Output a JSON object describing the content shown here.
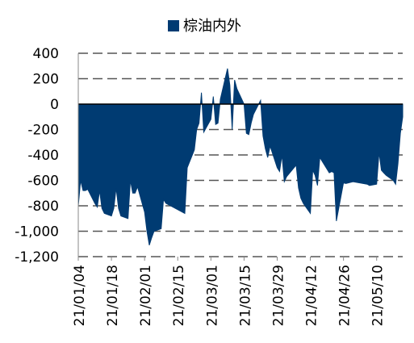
{
  "chart_data": {
    "type": "area",
    "title": "",
    "xlabel": "",
    "ylabel": "",
    "ylim": [
      -1200,
      400
    ],
    "yticks": [
      400,
      200,
      0,
      -200,
      -400,
      -600,
      -800,
      -1000,
      -1200
    ],
    "ytick_labels": [
      "400",
      "200",
      "0",
      "-200",
      "-400",
      "-600",
      "-800",
      "-1,000",
      "-1,200"
    ],
    "xlim": [
      "2021-01-04",
      "2021-05-21"
    ],
    "xticks": [
      "2021-01-04",
      "2021-01-18",
      "2021-02-01",
      "2021-02-15",
      "2021-03-01",
      "2021-03-15",
      "2021-03-29",
      "2021-04-12",
      "2021-04-26",
      "2021-05-10"
    ],
    "xtick_labels": [
      "21/01/04",
      "21/01/18",
      "21/02/01",
      "21/02/15",
      "21/03/01",
      "21/03/15",
      "21/03/29",
      "21/04/12",
      "21/04/26",
      "21/05/10"
    ],
    "grid": true,
    "legend_position": "top",
    "series": [
      {
        "name": "棕油内外",
        "color": "#003b72",
        "points": [
          [
            "2021-01-04",
            -800
          ],
          [
            "2021-01-05",
            -600
          ],
          [
            "2021-01-06",
            -680
          ],
          [
            "2021-01-07",
            -680
          ],
          [
            "2021-01-08",
            -670
          ],
          [
            "2021-01-11",
            -780
          ],
          [
            "2021-01-12",
            -810
          ],
          [
            "2021-01-13",
            -680
          ],
          [
            "2021-01-14",
            -820
          ],
          [
            "2021-01-15",
            -860
          ],
          [
            "2021-01-18",
            -880
          ],
          [
            "2021-01-19",
            -820
          ],
          [
            "2021-01-20",
            -660
          ],
          [
            "2021-01-21",
            -820
          ],
          [
            "2021-01-22",
            -880
          ],
          [
            "2021-01-25",
            -900
          ],
          [
            "2021-01-26",
            -600
          ],
          [
            "2021-01-27",
            -700
          ],
          [
            "2021-01-28",
            -700
          ],
          [
            "2021-01-29",
            -650
          ],
          [
            "2021-02-01",
            -850
          ],
          [
            "2021-02-02",
            -1000
          ],
          [
            "2021-02-03",
            -1110
          ],
          [
            "2021-02-04",
            -1050
          ],
          [
            "2021-02-05",
            -1000
          ],
          [
            "2021-02-08",
            -980
          ],
          [
            "2021-02-09",
            -750
          ],
          [
            "2021-02-10",
            -780
          ],
          [
            "2021-02-18",
            -860
          ],
          [
            "2021-02-19",
            -500
          ],
          [
            "2021-02-22",
            -360
          ],
          [
            "2021-02-23",
            -200
          ],
          [
            "2021-02-24",
            -150
          ],
          [
            "2021-02-25",
            90
          ],
          [
            "2021-02-26",
            -220
          ],
          [
            "2021-03-01",
            -120
          ],
          [
            "2021-03-02",
            60
          ],
          [
            "2021-03-03",
            -160
          ],
          [
            "2021-03-04",
            -150
          ],
          [
            "2021-03-05",
            40
          ],
          [
            "2021-03-08",
            280
          ],
          [
            "2021-03-09",
            150
          ],
          [
            "2021-03-10",
            -200
          ],
          [
            "2021-03-11",
            190
          ],
          [
            "2021-03-12",
            120
          ],
          [
            "2021-03-15",
            0
          ],
          [
            "2021-03-16",
            -230
          ],
          [
            "2021-03-17",
            -240
          ],
          [
            "2021-03-18",
            -150
          ],
          [
            "2021-03-19",
            -80
          ],
          [
            "2021-03-22",
            30
          ],
          [
            "2021-03-23",
            -250
          ],
          [
            "2021-03-24",
            -350
          ],
          [
            "2021-03-25",
            -420
          ],
          [
            "2021-03-26",
            -330
          ],
          [
            "2021-03-29",
            -500
          ],
          [
            "2021-03-30",
            -530
          ],
          [
            "2021-03-31",
            -400
          ],
          [
            "2021-04-01",
            -610
          ],
          [
            "2021-04-02",
            -570
          ],
          [
            "2021-04-06",
            -480
          ],
          [
            "2021-04-07",
            -660
          ],
          [
            "2021-04-08",
            -740
          ],
          [
            "2021-04-09",
            -780
          ],
          [
            "2021-04-12",
            -860
          ],
          [
            "2021-04-13",
            -520
          ],
          [
            "2021-04-14",
            -560
          ],
          [
            "2021-04-15",
            -640
          ],
          [
            "2021-04-16",
            -420
          ],
          [
            "2021-04-19",
            -510
          ],
          [
            "2021-04-20",
            -540
          ],
          [
            "2021-04-21",
            -530
          ],
          [
            "2021-04-22",
            -540
          ],
          [
            "2021-04-23",
            -920
          ],
          [
            "2021-04-26",
            -620
          ],
          [
            "2021-04-27",
            -625
          ],
          [
            "2021-04-28",
            -620
          ],
          [
            "2021-04-29",
            -615
          ],
          [
            "2021-04-30",
            -610
          ],
          [
            "2021-05-06",
            -630
          ],
          [
            "2021-05-07",
            -640
          ],
          [
            "2021-05-10",
            -630
          ],
          [
            "2021-05-11",
            -380
          ],
          [
            "2021-05-12",
            -520
          ],
          [
            "2021-05-13",
            -540
          ],
          [
            "2021-05-14",
            -560
          ],
          [
            "2021-05-17",
            -600
          ],
          [
            "2021-05-18",
            -630
          ],
          [
            "2021-05-19",
            -470
          ],
          [
            "2021-05-20",
            -230
          ],
          [
            "2021-05-21",
            -100
          ]
        ]
      }
    ]
  }
}
